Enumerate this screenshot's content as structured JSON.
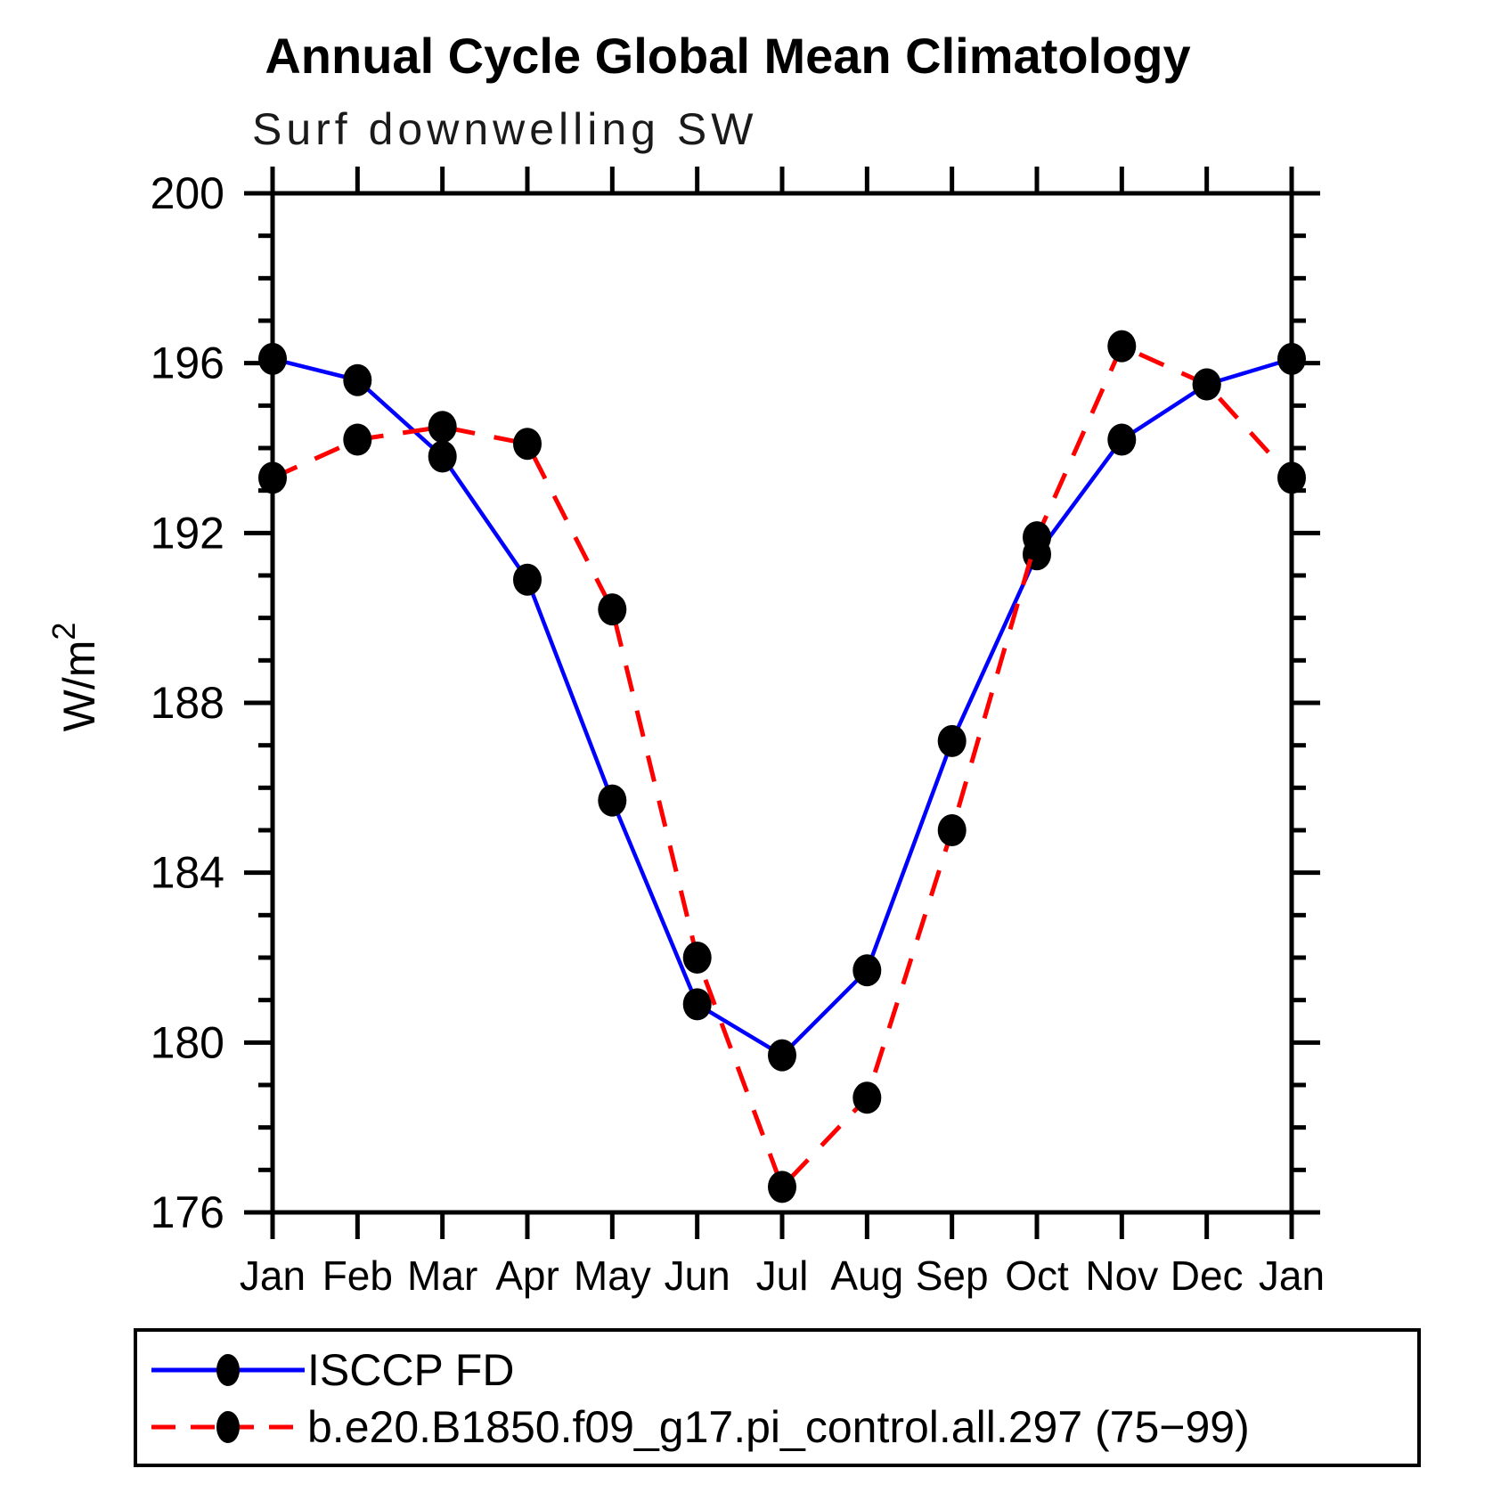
{
  "title": "Annual Cycle Global Mean Climatology",
  "subtitle": "Surf downwelling SW",
  "ylabel": {
    "base": "W/m",
    "exponent": "2"
  },
  "colors": {
    "obs_line": "#0000ff",
    "model_line": "#ff0000",
    "marker": "#000000",
    "axis": "#000000",
    "background": "#ffffff"
  },
  "chart_data": {
    "type": "line",
    "title": "Annual Cycle Global Mean Climatology",
    "subtitle": "Surf downwelling SW",
    "ylabel": "W/m2",
    "x_tick_labels": [
      "Jan",
      "Feb",
      "Mar",
      "Apr",
      "May",
      "Jun",
      "Jul",
      "Aug",
      "Sep",
      "Oct",
      "Nov",
      "Dec",
      "Jan"
    ],
    "ylim": [
      176,
      200
    ],
    "y_major_ticks": [
      176,
      180,
      184,
      188,
      192,
      196,
      200
    ],
    "y_minor_step": 1,
    "grid": "off",
    "legend_position": "bottom",
    "series": [
      {
        "name": "ISCCP FD",
        "style": "solid",
        "color": "#0000ff",
        "values": [
          196.1,
          195.6,
          193.8,
          190.9,
          185.7,
          180.9,
          179.7,
          181.7,
          187.1,
          191.5,
          194.2,
          195.5,
          196.1
        ]
      },
      {
        "name": "b.e20.B1850.f09_g17.pi_control.all.297 (75−99)",
        "style": "dashed",
        "color": "#ff0000",
        "values": [
          193.3,
          194.2,
          194.5,
          194.1,
          190.2,
          182.0,
          176.6,
          178.7,
          185.0,
          191.9,
          196.4,
          195.5,
          193.3
        ]
      }
    ]
  }
}
